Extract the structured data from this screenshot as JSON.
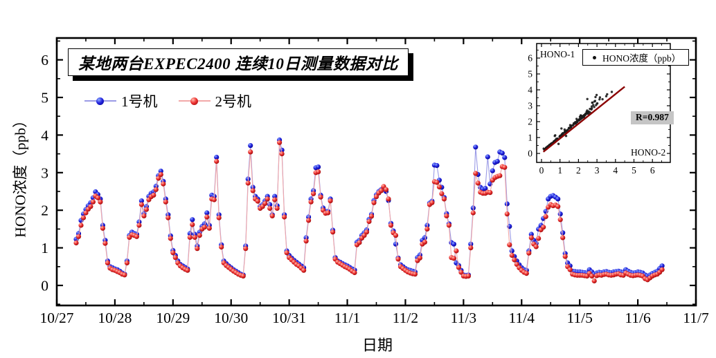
{
  "figure": {
    "background": "#ffffff"
  },
  "chart_data": [
    {
      "type": "line",
      "title": "某地两台EXPEC2400 连续10日测量数据对比",
      "xlabel": "日期",
      "ylabel": "HONO浓度（ppb）",
      "x_tick_labels": [
        "10/27",
        "10/28",
        "10/29",
        "10/30",
        "10/31",
        "11/1",
        "11/2",
        "11/3",
        "11/4",
        "11/5",
        "11/6",
        "11/7"
      ],
      "x_range_days": [
        0,
        11
      ],
      "ylim": [
        -0.55,
        6.58
      ],
      "y_ticks": [
        0,
        1,
        2,
        3,
        4,
        5,
        6
      ],
      "grid": false,
      "legend_position": "top-left-inside",
      "t_start": 0.3333,
      "t_step_days": 0.0416667,
      "series": [
        {
          "name": "1号机",
          "marker_color": "#1a1ad2",
          "line_color": "#9a9ae6",
          "values": [
            1.23,
            1.38,
            1.73,
            1.9,
            2.02,
            2.12,
            2.2,
            2.33,
            2.49,
            2.42,
            2.3,
            1.6,
            1.2,
            0.65,
            0.5,
            0.47,
            0.44,
            0.42,
            0.38,
            0.33,
            0.3,
            0.65,
            1.33,
            1.42,
            1.38,
            1.36,
            1.69,
            2.25,
            1.91,
            2.1,
            2.37,
            2.45,
            2.49,
            2.64,
            2.92,
            3.04,
            2.77,
            2.3,
            1.88,
            1.32,
            0.93,
            0.8,
            0.65,
            0.56,
            0.52,
            0.48,
            0.44,
            1.38,
            1.75,
            1.36,
            1.05,
            1.42,
            1.57,
            1.64,
            1.93,
            1.6,
            2.4,
            2.37,
            3.41,
            1.88,
            1.08,
            0.65,
            0.58,
            0.52,
            0.47,
            0.42,
            0.38,
            0.34,
            0.3,
            0.28,
            1.05,
            2.83,
            3.72,
            2.61,
            2.37,
            2.3,
            2.1,
            2.15,
            2.25,
            2.37,
            2.15,
            1.88,
            2.37,
            2.12,
            3.87,
            3.6,
            1.88,
            0.92,
            0.8,
            0.73,
            0.67,
            0.62,
            0.57,
            0.52,
            0.47,
            1.27,
            1.82,
            2.3,
            2.52,
            3.13,
            3.15,
            2.4,
            2.06,
            1.97,
            1.97,
            2.3,
            1.47,
            0.74,
            0.65,
            0.62,
            0.58,
            0.55,
            0.52,
            0.48,
            0.44,
            0.41,
            1.15,
            1.2,
            1.33,
            1.4,
            1.48,
            1.76,
            1.89,
            2.26,
            2.41,
            2.5,
            2.55,
            2.58,
            2.5,
            2.26,
            1.65,
            1.45,
            1.1,
            0.73,
            0.55,
            0.5,
            0.45,
            0.42,
            0.4,
            0.38,
            0.36,
            0.74,
            0.81,
            1.2,
            1.27,
            1.6,
            2.19,
            2.24,
            3.2,
            3.19,
            2.8,
            2.61,
            2.34,
            1.91,
            1.64,
            1.14,
            1.1,
            0.6,
            0.53,
            0.4,
            0.28,
            0.27,
            0.28,
            1.1,
            2.06,
            3.68,
            2.95,
            2.61,
            2.56,
            2.58,
            3.42,
            2.7,
            3.05,
            3.27,
            3.3,
            3.55,
            3.52,
            3.4,
            2.17,
            1.57,
            0.92,
            0.77,
            0.65,
            0.55,
            0.47,
            0.42,
            0.4,
            0.92,
            1.36,
            1.2,
            1.12,
            1.5,
            1.6,
            1.78,
            1.97,
            2.3,
            2.37,
            2.39,
            2.35,
            2.3,
            1.9,
            1.4,
            0.85,
            0.6,
            0.52,
            0.38,
            0.37,
            0.36,
            0.36,
            0.35,
            0.34,
            0.33,
            0.42,
            0.36,
            0.3,
            0.33,
            0.35,
            0.34,
            0.36,
            0.37,
            0.35,
            0.34,
            0.36,
            0.37,
            0.38,
            0.36,
            0.35,
            0.42,
            0.38,
            0.35,
            0.33,
            0.34,
            0.36,
            0.35,
            0.33,
            0.28,
            0.25,
            0.28,
            0.32,
            0.35,
            0.38,
            0.45,
            0.52
          ]
        },
        {
          "name": "2号机",
          "marker_color": "#e63232",
          "line_color": "#f2a8a8",
          "values": [
            1.13,
            1.3,
            1.6,
            1.8,
            1.93,
            2.03,
            2.1,
            2.22,
            2.38,
            2.33,
            2.22,
            1.52,
            1.12,
            0.6,
            0.46,
            0.42,
            0.4,
            0.37,
            0.34,
            0.3,
            0.28,
            0.6,
            1.28,
            1.35,
            1.33,
            1.3,
            1.6,
            2.15,
            1.85,
            2.02,
            2.28,
            2.36,
            2.4,
            2.55,
            2.85,
            2.95,
            2.7,
            2.22,
            1.8,
            1.25,
            0.87,
            0.74,
            0.6,
            0.52,
            0.47,
            0.43,
            0.4,
            1.28,
            1.62,
            1.28,
            0.98,
            1.33,
            1.5,
            1.55,
            1.82,
            1.52,
            2.3,
            2.28,
            3.3,
            1.8,
            1.02,
            0.6,
            0.53,
            0.48,
            0.43,
            0.38,
            0.34,
            0.3,
            0.27,
            0.25,
            0.98,
            2.72,
            3.55,
            2.52,
            2.3,
            2.24,
            2.05,
            2.1,
            2.18,
            2.3,
            2.05,
            1.85,
            2.28,
            2.05,
            3.8,
            3.5,
            1.82,
            0.87,
            0.74,
            0.68,
            0.62,
            0.56,
            0.52,
            0.46,
            0.4,
            1.18,
            1.73,
            2.22,
            2.44,
            3.0,
            3.02,
            2.35,
            2.0,
            1.92,
            1.93,
            2.25,
            1.42,
            0.7,
            0.62,
            0.58,
            0.54,
            0.5,
            0.47,
            0.43,
            0.38,
            0.34,
            1.08,
            1.14,
            1.26,
            1.33,
            1.42,
            1.7,
            1.84,
            2.2,
            2.36,
            2.46,
            2.52,
            2.63,
            2.55,
            2.3,
            1.6,
            1.4,
            1.33,
            0.7,
            0.5,
            0.45,
            0.4,
            0.36,
            0.33,
            0.31,
            0.3,
            0.66,
            0.73,
            1.1,
            1.15,
            1.5,
            2.15,
            2.2,
            2.76,
            2.74,
            2.62,
            2.44,
            2.3,
            1.85,
            1.6,
            0.74,
            0.72,
            0.92,
            0.48,
            0.35,
            0.25,
            0.24,
            0.25,
            1.0,
            1.93,
            2.98,
            2.72,
            2.48,
            2.45,
            2.45,
            2.48,
            2.47,
            2.8,
            2.87,
            2.9,
            2.92,
            3.16,
            3.14,
            1.9,
            1.08,
            0.8,
            0.68,
            0.56,
            0.47,
            0.4,
            0.35,
            0.32,
            0.86,
            1.27,
            1.1,
            1.03,
            1.25,
            1.48,
            1.55,
            1.83,
            2.08,
            2.15,
            2.12,
            2.14,
            2.1,
            1.75,
            1.27,
            0.77,
            0.5,
            0.42,
            0.3,
            0.28,
            0.27,
            0.27,
            0.27,
            0.26,
            0.25,
            0.32,
            0.25,
            0.12,
            0.26,
            0.28,
            0.27,
            0.29,
            0.3,
            0.28,
            0.27,
            0.28,
            0.3,
            0.31,
            0.28,
            0.27,
            0.33,
            0.3,
            0.27,
            0.26,
            0.27,
            0.28,
            0.27,
            0.25,
            0.18,
            0.15,
            0.2,
            0.25,
            0.28,
            0.3,
            0.35,
            0.42
          ]
        }
      ]
    },
    {
      "type": "scatter",
      "role": "inset-correlation",
      "x_axis_label_inside": "HONO-2",
      "y_axis_label_inside": "HONO-1",
      "legend_label": "HONO浓度（ppb）",
      "correlation_label": "R=0.987",
      "x_ticks": [
        0,
        1,
        2,
        3,
        4,
        5,
        6
      ],
      "y_ticks": [
        0,
        1,
        2,
        3,
        4,
        5,
        6
      ],
      "xlim": [
        -0.3,
        7
      ],
      "ylim": [
        -0.55,
        6.9
      ],
      "points_source": "x = 2号机 values, y = 1号机 values",
      "point_color": "#1c1c1c",
      "fit_line": {
        "x1": 0.1,
        "y1": 0.1,
        "x2": 4.5,
        "y2": 4.2,
        "color": "#8b0000"
      }
    }
  ]
}
